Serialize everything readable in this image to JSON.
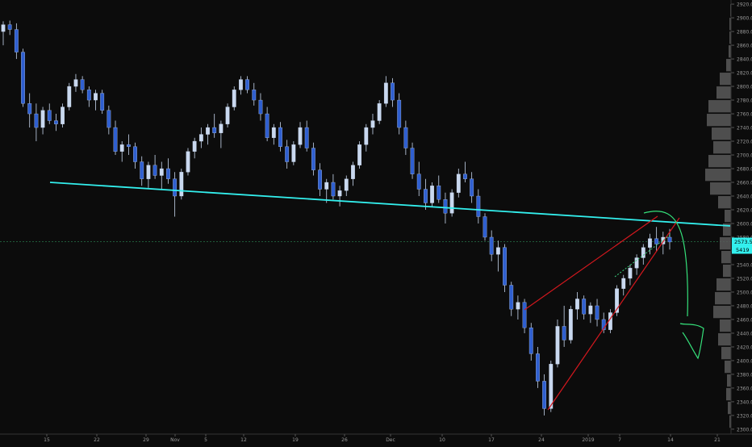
{
  "chart_data": {
    "type": "candlestick",
    "instrument_note": "daily candles, index price",
    "y_axis": {
      "ticks": [
        "2920.0",
        "2900.0",
        "2880.0",
        "2860.0",
        "2840.0",
        "2820.0",
        "2800.0",
        "2780.0",
        "2760.0",
        "2740.0",
        "2720.0",
        "2700.0",
        "2680.0",
        "2660.0",
        "2640.0",
        "2620.0",
        "2600.0",
        "2580.0",
        "2560.0",
        "2540.0",
        "2520.0",
        "2500.0",
        "2480.0",
        "2460.0",
        "2440.0",
        "2420.0",
        "2400.0",
        "2380.0",
        "2360.0",
        "2340.0",
        "2320.0",
        "2300.0"
      ],
      "ylim": [
        2294,
        2926
      ],
      "price_label": "2573.5",
      "price_label_2": "5419",
      "current_price": 2573.5
    },
    "x_axis": {
      "ticks": [
        "15",
        "22",
        "29",
        "Nov",
        "5",
        "12",
        "19",
        "26",
        "Dec",
        "10",
        "17",
        "24",
        "2019",
        "7",
        "14",
        "21"
      ]
    },
    "candles_ohlc": [
      [
        2880,
        2895,
        2860,
        2890
      ],
      [
        2890,
        2896,
        2875,
        2883
      ],
      [
        2883,
        2892,
        2840,
        2850
      ],
      [
        2850,
        2855,
        2770,
        2775
      ],
      [
        2775,
        2790,
        2740,
        2760
      ],
      [
        2760,
        2775,
        2720,
        2740
      ],
      [
        2740,
        2770,
        2730,
        2765
      ],
      [
        2765,
        2775,
        2745,
        2750
      ],
      [
        2750,
        2760,
        2735,
        2745
      ],
      [
        2745,
        2775,
        2740,
        2770
      ],
      [
        2770,
        2805,
        2765,
        2800
      ],
      [
        2800,
        2818,
        2792,
        2810
      ],
      [
        2810,
        2815,
        2790,
        2795
      ],
      [
        2795,
        2800,
        2770,
        2780
      ],
      [
        2780,
        2795,
        2765,
        2790
      ],
      [
        2790,
        2795,
        2760,
        2765
      ],
      [
        2765,
        2772,
        2730,
        2740
      ],
      [
        2740,
        2750,
        2700,
        2705
      ],
      [
        2705,
        2720,
        2690,
        2715
      ],
      [
        2715,
        2730,
        2700,
        2712
      ],
      [
        2712,
        2718,
        2680,
        2690
      ],
      [
        2690,
        2698,
        2655,
        2665
      ],
      [
        2665,
        2690,
        2652,
        2685
      ],
      [
        2685,
        2700,
        2665,
        2670
      ],
      [
        2670,
        2690,
        2650,
        2680
      ],
      [
        2680,
        2695,
        2658,
        2665
      ],
      [
        2665,
        2675,
        2610,
        2640
      ],
      [
        2640,
        2680,
        2635,
        2675
      ],
      [
        2675,
        2710,
        2670,
        2705
      ],
      [
        2705,
        2725,
        2695,
        2720
      ],
      [
        2720,
        2740,
        2710,
        2730
      ],
      [
        2730,
        2745,
        2715,
        2740
      ],
      [
        2740,
        2760,
        2725,
        2732
      ],
      [
        2732,
        2750,
        2710,
        2745
      ],
      [
        2745,
        2775,
        2740,
        2770
      ],
      [
        2770,
        2800,
        2765,
        2795
      ],
      [
        2795,
        2815,
        2788,
        2810
      ],
      [
        2810,
        2815,
        2790,
        2795
      ],
      [
        2795,
        2805,
        2772,
        2780
      ],
      [
        2780,
        2790,
        2750,
        2760
      ],
      [
        2760,
        2770,
        2720,
        2725
      ],
      [
        2725,
        2745,
        2715,
        2740
      ],
      [
        2740,
        2748,
        2705,
        2712
      ],
      [
        2712,
        2722,
        2680,
        2690
      ],
      [
        2690,
        2720,
        2685,
        2715
      ],
      [
        2715,
        2748,
        2710,
        2740
      ],
      [
        2740,
        2750,
        2705,
        2710
      ],
      [
        2710,
        2718,
        2670,
        2678
      ],
      [
        2678,
        2688,
        2640,
        2650
      ],
      [
        2650,
        2665,
        2630,
        2660
      ],
      [
        2660,
        2672,
        2635,
        2640
      ],
      [
        2640,
        2655,
        2625,
        2648
      ],
      [
        2648,
        2670,
        2640,
        2665
      ],
      [
        2665,
        2690,
        2655,
        2685
      ],
      [
        2685,
        2720,
        2680,
        2715
      ],
      [
        2715,
        2745,
        2705,
        2740
      ],
      [
        2740,
        2760,
        2730,
        2750
      ],
      [
        2750,
        2780,
        2745,
        2775
      ],
      [
        2775,
        2815,
        2770,
        2805
      ],
      [
        2805,
        2812,
        2770,
        2780
      ],
      [
        2780,
        2790,
        2730,
        2740
      ],
      [
        2740,
        2750,
        2700,
        2710
      ],
      [
        2710,
        2718,
        2665,
        2672
      ],
      [
        2672,
        2690,
        2640,
        2650
      ],
      [
        2650,
        2665,
        2620,
        2630
      ],
      [
        2630,
        2660,
        2625,
        2655
      ],
      [
        2655,
        2670,
        2630,
        2635
      ],
      [
        2635,
        2645,
        2600,
        2615
      ],
      [
        2615,
        2650,
        2610,
        2645
      ],
      [
        2645,
        2680,
        2638,
        2672
      ],
      [
        2672,
        2690,
        2660,
        2665
      ],
      [
        2665,
        2675,
        2630,
        2640
      ],
      [
        2640,
        2650,
        2600,
        2610
      ],
      [
        2610,
        2615,
        2575,
        2580
      ],
      [
        2580,
        2590,
        2545,
        2555
      ],
      [
        2555,
        2575,
        2530,
        2565
      ],
      [
        2565,
        2570,
        2500,
        2510
      ],
      [
        2510,
        2515,
        2465,
        2475
      ],
      [
        2475,
        2495,
        2460,
        2485
      ],
      [
        2485,
        2490,
        2440,
        2448
      ],
      [
        2448,
        2455,
        2400,
        2410
      ],
      [
        2410,
        2420,
        2360,
        2370
      ],
      [
        2370,
        2380,
        2320,
        2330
      ],
      [
        2330,
        2400,
        2325,
        2395
      ],
      [
        2395,
        2460,
        2390,
        2450
      ],
      [
        2450,
        2480,
        2420,
        2430
      ],
      [
        2430,
        2480,
        2425,
        2475
      ],
      [
        2475,
        2500,
        2460,
        2490
      ],
      [
        2490,
        2495,
        2460,
        2468
      ],
      [
        2468,
        2485,
        2455,
        2480
      ],
      [
        2480,
        2490,
        2450,
        2460
      ],
      [
        2460,
        2470,
        2440,
        2445
      ],
      [
        2445,
        2475,
        2440,
        2470
      ],
      [
        2470,
        2510,
        2465,
        2505
      ],
      [
        2505,
        2525,
        2495,
        2520
      ],
      [
        2520,
        2540,
        2510,
        2535
      ],
      [
        2535,
        2555,
        2525,
        2550
      ],
      [
        2550,
        2570,
        2540,
        2565
      ],
      [
        2565,
        2585,
        2555,
        2578
      ],
      [
        2578,
        2595,
        2560,
        2570
      ],
      [
        2570,
        2588,
        2555,
        2580
      ],
      [
        2580,
        2592,
        2562,
        2573
      ]
    ],
    "volume_profile_label": "volume profile"
  },
  "colors": {
    "background": "#0c0c0c",
    "candle": "#c9d8ef",
    "trendline": "#33f0ee",
    "wedge": "#d4181e",
    "projection": "#35e07a",
    "axis_text": "#9a9a9a"
  }
}
